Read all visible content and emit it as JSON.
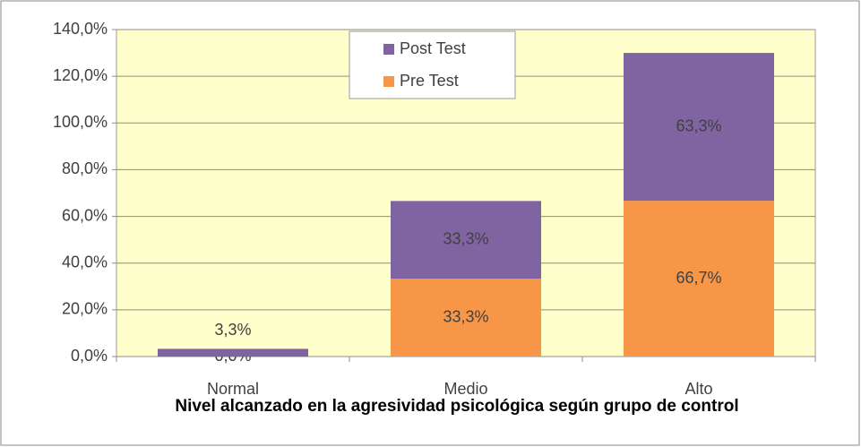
{
  "chart_data": {
    "type": "stacked_bar",
    "title": "Nivel alcanzado en la agresividad psicológica según grupo de control",
    "categories": [
      "Normal",
      "Medio",
      "Alto"
    ],
    "series": [
      {
        "name": "Pre Test",
        "color": "#f79646",
        "values": [
          0,
          33.3,
          66.7
        ],
        "value_labels": [
          "0,0%",
          "33,3%",
          "66,7%"
        ]
      },
      {
        "name": "Post Test",
        "color": "#8064a2",
        "values": [
          3.3,
          33.3,
          63.3
        ],
        "value_labels": [
          "3,3%",
          "33,3%",
          "63,3%"
        ]
      }
    ],
    "ylim": [
      0,
      140
    ],
    "yticks": [
      {
        "value": 0,
        "label": "0,0%"
      },
      {
        "value": 20,
        "label": "20,0%"
      },
      {
        "value": 40,
        "label": "40,0%"
      },
      {
        "value": 60,
        "label": "60,0%"
      },
      {
        "value": 80,
        "label": "80,0%"
      },
      {
        "value": 100,
        "label": "100,0%"
      },
      {
        "value": 120,
        "label": "120,0%"
      },
      {
        "value": 140,
        "label": "140,0%"
      }
    ],
    "grid": true,
    "legend": "top"
  }
}
